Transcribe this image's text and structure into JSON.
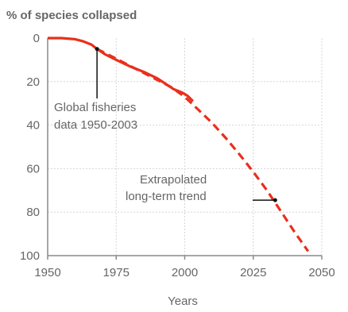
{
  "chart_data": {
    "type": "line",
    "ylabel": "% of species collapsed",
    "xlabel": "Years",
    "xlim": [
      1950,
      2050
    ],
    "ylim": [
      0,
      100
    ],
    "y_inverted": true,
    "x_ticks": [
      "1950",
      "1975",
      "2000",
      "2025",
      "2050"
    ],
    "y_ticks": [
      "0",
      "20",
      "40",
      "60",
      "80",
      "100"
    ],
    "grid": "horizontal and vertical",
    "series": [
      {
        "name": "Global fisheries data 1950-2003",
        "style": "solid",
        "color": "#e8301c",
        "x": [
          1950,
          1955,
          1960,
          1963,
          1966,
          1968,
          1971,
          1975,
          1980,
          1985,
          1990,
          1993,
          1996,
          1999,
          2001,
          2003
        ],
        "y": [
          0,
          0,
          0.5,
          1.5,
          3,
          5,
          7.5,
          10,
          13,
          15.5,
          18.5,
          21,
          23.5,
          25,
          26.5,
          29
        ]
      },
      {
        "name": "Extrapolated long-term trend",
        "style": "dashed",
        "color": "#e8301c",
        "x": [
          1968,
          1975,
          1985,
          1995,
          2000,
          2005,
          2010,
          2015,
          2020,
          2025,
          2030,
          2035,
          2040,
          2045
        ],
        "y": [
          5,
          9.5,
          16,
          22.5,
          27,
          33,
          39,
          46,
          53.5,
          61.5,
          70,
          79.5,
          89,
          98
        ]
      }
    ],
    "annotations": {
      "observed": [
        "Global fisheries",
        "data 1950-2003"
      ],
      "trend": [
        "Extrapolated",
        "long-term trend"
      ]
    }
  }
}
